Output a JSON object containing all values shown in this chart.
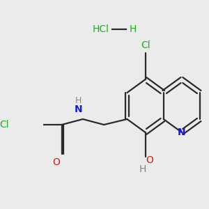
{
  "bg_color": "#ebebeb",
  "colors": {
    "bond": "#2a2a2a",
    "N": "#1a1acc",
    "O": "#cc1a1a",
    "Cl": "#22aa22",
    "H": "#888888"
  },
  "lw": 1.6,
  "fontsize": 9.5
}
